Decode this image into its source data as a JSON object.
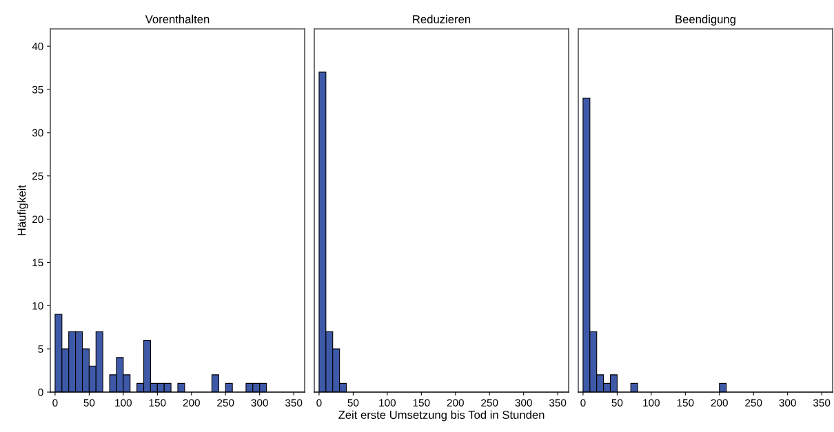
{
  "chart_data": [
    {
      "type": "histogram",
      "title": "Vorenthalten",
      "ylabel": "Häufigkeit",
      "color": "#3e59a8",
      "bins": [
        0,
        10,
        20,
        30,
        40,
        50,
        60,
        70,
        80,
        90,
        100,
        110,
        120,
        130,
        140,
        150,
        160,
        170,
        180,
        190,
        200,
        210,
        220,
        230,
        240,
        250,
        260,
        270,
        280,
        290,
        300,
        310
      ],
      "values": [
        9,
        5,
        7,
        7,
        5,
        3,
        7,
        0,
        2,
        4,
        2,
        0,
        1,
        6,
        1,
        1,
        1,
        0,
        1,
        0,
        0,
        0,
        0,
        2,
        0,
        1,
        0,
        0,
        1,
        1,
        1
      ],
      "xlim": [
        -7,
        366
      ],
      "xticks": [
        0,
        50,
        100,
        150,
        200,
        250,
        300,
        350
      ],
      "ylim": [
        0,
        42
      ],
      "yticks": [
        0,
        5,
        10,
        15,
        20,
        25,
        30,
        35,
        40
      ]
    },
    {
      "type": "histogram",
      "title": "Reduzieren",
      "xlabel": "Zeit erste Umsetzung bis Tod in Stunden",
      "color": "#3e59a8",
      "bins": [
        0,
        10,
        20,
        30,
        40
      ],
      "values": [
        37,
        7,
        5,
        1
      ],
      "xlim": [
        -7,
        366
      ],
      "xticks": [
        0,
        50,
        100,
        150,
        200,
        250,
        300,
        350
      ],
      "ylim": [
        0,
        42
      ],
      "yticks": [
        0,
        5,
        10,
        15,
        20,
        25,
        30,
        35,
        40
      ],
      "tick_labels": "x"
    },
    {
      "type": "histogram",
      "title": "Beendigung",
      "color": "#3e59a8",
      "bins": [
        0,
        10,
        20,
        30,
        40,
        50,
        60,
        70,
        80,
        90,
        100,
        110,
        120,
        130,
        140,
        150,
        160,
        170,
        180,
        190,
        200,
        210
      ],
      "values": [
        34,
        7,
        2,
        1,
        2,
        0,
        0,
        1,
        0,
        0,
        0,
        0,
        0,
        0,
        0,
        0,
        0,
        0,
        0,
        0,
        1
      ],
      "xlim": [
        -7,
        366
      ],
      "xticks": [
        0,
        50,
        100,
        150,
        200,
        250,
        300,
        350
      ],
      "ylim": [
        0,
        42
      ],
      "yticks": [
        0,
        5,
        10,
        15,
        20,
        25,
        30,
        35,
        40
      ],
      "tick_labels": "x"
    }
  ]
}
